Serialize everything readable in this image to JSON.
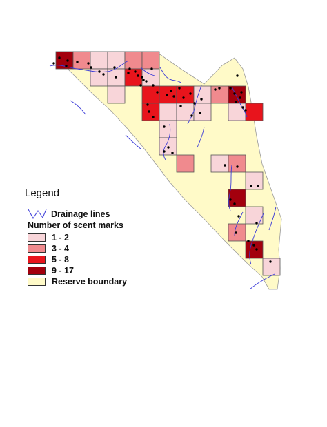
{
  "legend": {
    "title": "Legend",
    "drainage_label": "Drainage lines",
    "scent_heading": "Number of scent marks",
    "classes": [
      {
        "label": "1 - 2",
        "color": "#f8d5d9"
      },
      {
        "label": "3 - 4",
        "color": "#f08a8e"
      },
      {
        "label": "5 - 8",
        "color": "#e8141c"
      },
      {
        "label": "9 - 17",
        "color": "#a3000d"
      }
    ],
    "boundary_label": "Reserve boundary",
    "boundary_color": "#fffac8",
    "drainage_color": "#3a3ad8"
  }
}
